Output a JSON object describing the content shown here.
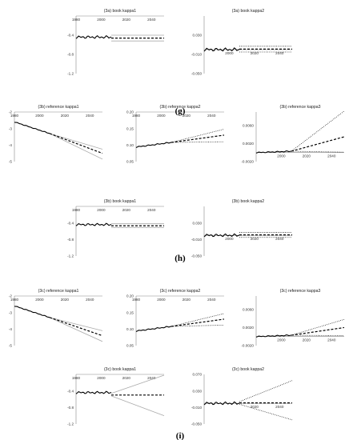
{
  "panel_labels": [
    "(g)",
    "(h)",
    "(i)"
  ],
  "chart_data": [
    {
      "type": "line",
      "title": "(3a) book kappa1",
      "xlim": [
        1980,
        2050
      ],
      "ylim": [
        -1.2,
        0
      ],
      "xticks": [
        "1980",
        "2000",
        "2020",
        "2040"
      ],
      "yticks": [
        "-0.4",
        "-0.8",
        "-1.2"
      ],
      "history": {
        "start": 1980,
        "end": 2008,
        "level": -0.44,
        "amp": 0.025
      },
      "forecast": {
        "center_start": -0.46,
        "center_end": -0.46,
        "upper_start": -0.4,
        "upper_end": -0.4,
        "lower_start": -0.52,
        "lower_end": -0.52,
        "center_style": "dashed",
        "band_style": "gray"
      }
    },
    {
      "type": "line",
      "title": "(3a) book kappa2",
      "xlim": [
        1980,
        2050
      ],
      "ylim": [
        -0.05,
        0.07
      ],
      "xticks": [
        "2000",
        "2020",
        "2040"
      ],
      "yticks": [
        "0.030",
        "-0.010",
        "-0.050"
      ],
      "history": {
        "start": 1980,
        "end": 2008,
        "level": 0.0,
        "amp": 0.003
      },
      "forecast": {
        "center_start": 0.001,
        "center_end": 0.001,
        "upper_start": 0.007,
        "upper_end": 0.007,
        "lower_start": -0.005,
        "lower_end": -0.005,
        "center_style": "dashed",
        "band_style": "dotted"
      }
    },
    {
      "type": "line",
      "title": "(3b) reference kappa1",
      "xlim": [
        1980,
        2050
      ],
      "ylim": [
        -5,
        -2
      ],
      "xticks": [
        "1980",
        "2000",
        "2020",
        "2040"
      ],
      "yticks": [
        "-2",
        "-3",
        "-4",
        "-5"
      ],
      "history": {
        "start": 1980,
        "end": 2008,
        "trend": [
          -2.6,
          -3.3
        ],
        "amp": 0.02
      },
      "forecast": {
        "center_start": -3.3,
        "center_end": -4.5,
        "upper_start": -3.3,
        "upper_end": -4.25,
        "lower_start": -3.3,
        "lower_end": -4.85,
        "center_style": "dashed",
        "band_style": "gray"
      }
    },
    {
      "type": "line",
      "title": "(3b) reference kappa2",
      "xlim": [
        1980,
        2050
      ],
      "ylim": [
        0.05,
        0.2
      ],
      "xticks": [
        "1980",
        "2000",
        "2020",
        "2040"
      ],
      "yticks": [
        "0.20",
        "0.15",
        "0.10",
        "0.05"
      ],
      "history": {
        "start": 1980,
        "end": 2008,
        "trend": [
          0.094,
          0.108
        ],
        "amp": 0.0015
      },
      "forecast": {
        "center_start": 0.108,
        "center_end": 0.13,
        "upper_start": 0.108,
        "upper_end": 0.148,
        "lower_start": 0.108,
        "lower_end": 0.11,
        "center_style": "dashed",
        "band_style": "dotted"
      }
    },
    {
      "type": "line",
      "title": "(3b) reference kappa3",
      "xlim": [
        1980,
        2050
      ],
      "ylim": [
        -0.002,
        0.009
      ],
      "xticks": [
        "2000",
        "2020",
        "2040"
      ],
      "yticks": [
        "0.0060",
        "0.0020",
        "-0.0020"
      ],
      "history": {
        "start": 1980,
        "end": 2008,
        "trend": [
          0.0,
          0.0003
        ],
        "amp": 0.0001
      },
      "forecast": {
        "center_start": 0.0003,
        "center_end": 0.0035,
        "upper_start": 0.0003,
        "upper_end": 0.0092,
        "lower_start": 0.0003,
        "lower_end": 0.0001,
        "center_style": "dashed",
        "band_style": "dotted"
      }
    },
    {
      "type": "line",
      "title": "(3b) book kappa1",
      "xlim": [
        1980,
        2050
      ],
      "ylim": [
        -1.2,
        0
      ],
      "xticks": [
        "1980",
        "2000",
        "2020",
        "2040"
      ],
      "yticks": [
        "-0.4",
        "-0.8",
        "-1.2"
      ],
      "history": {
        "start": 1980,
        "end": 2008,
        "level": -0.44,
        "amp": 0.025
      },
      "forecast": {
        "center_start": -0.47,
        "center_end": -0.47,
        "upper_start": -0.42,
        "upper_end": -0.42,
        "lower_start": -0.51,
        "lower_end": -0.51,
        "center_style": "dashed",
        "band_style": "gray"
      }
    },
    {
      "type": "line",
      "title": "(3b) book kappa2",
      "xlim": [
        1980,
        2050
      ],
      "ylim": [
        -0.05,
        0.07
      ],
      "xticks": [
        "2000",
        "2020",
        "2040"
      ],
      "yticks": [
        "0.030",
        "-0.010",
        "-0.050"
      ],
      "history": {
        "start": 1980,
        "end": 2008,
        "level": 0.0,
        "amp": 0.003
      },
      "forecast": {
        "center_start": 0.001,
        "center_end": 0.001,
        "upper_start": 0.007,
        "upper_end": 0.007,
        "lower_start": -0.005,
        "lower_end": -0.005,
        "center_style": "dashed",
        "band_style": "dotted"
      }
    },
    {
      "type": "line",
      "title": "(3c) reference kappa1",
      "xlim": [
        1980,
        2050
      ],
      "ylim": [
        -5,
        -2
      ],
      "xticks": [
        "1980",
        "2000",
        "2020",
        "2040"
      ],
      "yticks": [
        "-2",
        "-3",
        "-4",
        "-5"
      ],
      "history": {
        "start": 1980,
        "end": 2008,
        "trend": [
          -2.6,
          -3.3
        ],
        "amp": 0.02
      },
      "forecast": {
        "center_start": -3.3,
        "center_end": -4.4,
        "upper_start": -3.3,
        "upper_end": -4.1,
        "lower_start": -3.3,
        "lower_end": -4.75,
        "center_style": "dashed",
        "band_style": "gray"
      }
    },
    {
      "type": "line",
      "title": "(3c) reference kappa2",
      "xlim": [
        1980,
        2050
      ],
      "ylim": [
        0.05,
        0.2
      ],
      "xticks": [
        "1980",
        "2000",
        "2020",
        "2040"
      ],
      "yticks": [
        "0.20",
        "0.15",
        "0.10",
        "0.05"
      ],
      "history": {
        "start": 1980,
        "end": 2008,
        "trend": [
          0.094,
          0.108
        ],
        "amp": 0.0015
      },
      "forecast": {
        "center_start": 0.108,
        "center_end": 0.13,
        "upper_start": 0.108,
        "upper_end": 0.147,
        "lower_start": 0.108,
        "lower_end": 0.112,
        "center_style": "dashed",
        "band_style": "dotted"
      }
    },
    {
      "type": "line",
      "title": "(3c) reference kappa3",
      "xlim": [
        1980,
        2050
      ],
      "ylim": [
        -0.002,
        0.009
      ],
      "xticks": [
        "2000",
        "2020",
        "2040"
      ],
      "yticks": [
        "0.0060",
        "0.0020",
        "-0.0020"
      ],
      "history": {
        "start": 1980,
        "end": 2008,
        "trend": [
          0.0,
          0.0003
        ],
        "amp": 0.0001
      },
      "forecast": {
        "center_start": 0.0003,
        "center_end": 0.002,
        "upper_start": 0.0003,
        "upper_end": 0.0038,
        "lower_start": 0.0003,
        "lower_end": 0.0002,
        "center_style": "dashed",
        "band_style": "dotted"
      }
    },
    {
      "type": "line",
      "title": "(3c) book kappa1",
      "xlim": [
        1980,
        2050
      ],
      "ylim": [
        -1.2,
        0
      ],
      "xticks": [
        "1980",
        "2000",
        "2020",
        "2040"
      ],
      "yticks": [
        "-0.4",
        "-0.8",
        "-1.2"
      ],
      "history": {
        "start": 1980,
        "end": 2008,
        "level": -0.44,
        "amp": 0.025
      },
      "forecast": {
        "center_start": -0.5,
        "center_end": -0.5,
        "upper_start": -0.46,
        "upper_end": -0.02,
        "lower_start": -0.52,
        "lower_end": -1.0,
        "center_style": "dashed",
        "band_style": "gray"
      }
    },
    {
      "type": "line",
      "title": "(3c) book kappa2",
      "xlim": [
        1980,
        2050
      ],
      "ylim": [
        -0.05,
        0.07
      ],
      "xticks": [
        "2020",
        "2040"
      ],
      "yticks": [
        "0.070",
        "0.030",
        "-0.010",
        "-0.050"
      ],
      "history": {
        "start": 1980,
        "end": 2008,
        "level": 0.0,
        "amp": 0.003
      },
      "forecast": {
        "center_start": 0.001,
        "center_end": 0.001,
        "upper_start": 0.004,
        "upper_end": 0.055,
        "lower_start": -0.002,
        "lower_end": -0.04,
        "center_style": "dashed",
        "band_style": "dotted"
      }
    }
  ]
}
